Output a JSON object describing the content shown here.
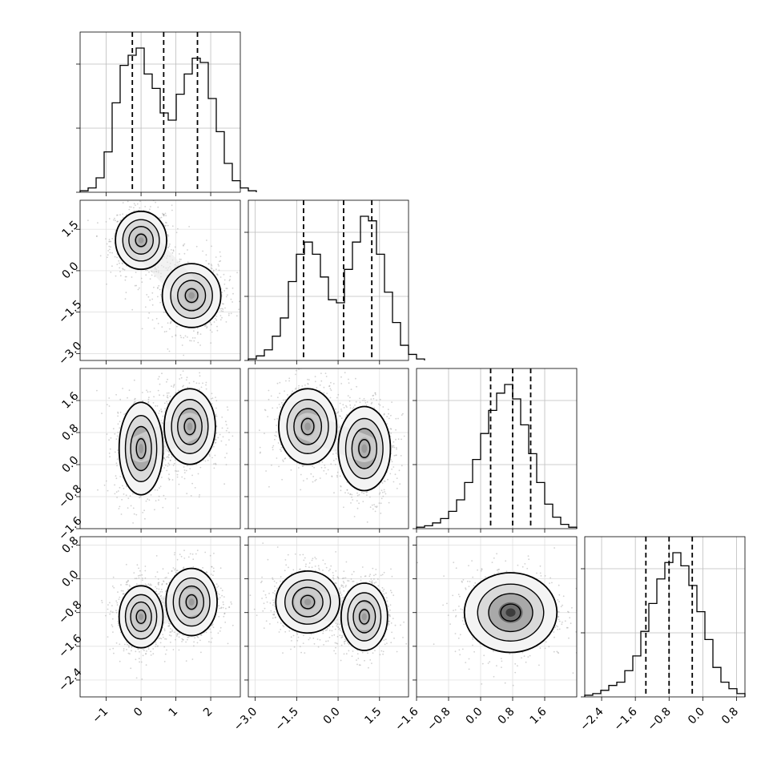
{
  "chart_data": {
    "type": "corner",
    "description_free": true,
    "grid": true,
    "n_params": 4,
    "quantile_lines": [
      [
        -0.25,
        0.65,
        1.62
      ],
      [
        -1.25,
        0.2,
        1.22
      ],
      [
        0.25,
        0.8,
        1.25
      ],
      [
        -1.35,
        -0.8,
        -0.25
      ]
    ],
    "axis_ranges": [
      [
        -1.75,
        2.85
      ],
      [
        -3.25,
        2.55
      ],
      [
        -1.6,
        2.4
      ],
      [
        -2.8,
        1.0
      ]
    ],
    "x_tick_labels": [
      [
        "−1",
        "0",
        "1",
        "2"
      ],
      [
        "−3.0",
        "−1.5",
        "0.0",
        "1.5"
      ],
      [
        "−1.6",
        "−0.8",
        "0.0",
        "0.8",
        "1.6"
      ],
      [
        "−2.4",
        "−1.6",
        "−0.8",
        "0.0",
        "0.8"
      ]
    ],
    "x_tick_values": [
      [
        -1,
        0,
        1,
        2
      ],
      [
        -3.0,
        -1.5,
        0.0,
        1.5
      ],
      [
        -1.6,
        -0.8,
        0.0,
        0.8,
        1.6
      ],
      [
        -2.4,
        -1.6,
        -0.8,
        0.0,
        0.8
      ]
    ],
    "y_tick_labels": [
      [],
      [
        "−3.0",
        "−1.5",
        "0.0",
        "1.5"
      ],
      [
        "−1.6",
        "−0.8",
        "0.0",
        "0.8",
        "1.6"
      ],
      [
        "−2.4",
        "−1.6",
        "−0.8",
        "0.0",
        "0.8"
      ]
    ],
    "y_tick_values": [
      [],
      [
        -3.0,
        -1.5,
        0.0,
        1.5
      ],
      [
        -1.6,
        -0.8,
        0.0,
        0.8,
        1.6
      ],
      [
        -2.4,
        -1.6,
        -0.8,
        0.0,
        0.8
      ]
    ],
    "histograms": [
      {
        "param": 1,
        "bins_start": -1.75,
        "bin_width": 0.23,
        "counts": [
          1,
          3,
          10,
          28,
          62,
          88,
          95,
          100,
          82,
          72,
          55,
          50,
          68,
          82,
          93,
          90,
          65,
          42,
          20,
          8,
          3,
          1
        ]
      },
      {
        "param": 2,
        "bins_start": -3.25,
        "bin_width": 0.29,
        "counts": [
          1,
          3,
          7,
          16,
          28,
          52,
          70,
          78,
          70,
          55,
          40,
          38,
          60,
          78,
          95,
          92,
          70,
          45,
          25,
          10,
          4,
          1
        ]
      },
      {
        "param": 3,
        "bins_start": -1.6,
        "bin_width": 0.2,
        "counts": [
          1,
          2,
          4,
          7,
          12,
          20,
          32,
          48,
          66,
          82,
          94,
          100,
          90,
          72,
          52,
          32,
          17,
          8,
          3,
          1
        ]
      },
      {
        "param": 4,
        "bins_start": -2.8,
        "bin_width": 0.19,
        "counts": [
          1,
          2,
          4,
          7,
          9,
          16,
          25,
          40,
          57,
          72,
          82,
          88,
          80,
          68,
          52,
          35,
          18,
          9,
          5,
          2
        ]
      }
    ],
    "joint_distributions": [
      {
        "x_param": 1,
        "y_param": 2,
        "modes": [
          {
            "x": 0.0,
            "y": 1.1,
            "sx": 0.35,
            "sy": 0.5
          },
          {
            "x": 1.45,
            "y": -0.9,
            "sx": 0.4,
            "sy": 0.55
          }
        ]
      },
      {
        "x_param": 1,
        "y_param": 3,
        "modes": [
          {
            "x": 0.0,
            "y": 0.4,
            "sx": 0.3,
            "sy": 0.55
          },
          {
            "x": 1.4,
            "y": 0.95,
            "sx": 0.35,
            "sy": 0.45
          }
        ]
      },
      {
        "x_param": 2,
        "y_param": 3,
        "modes": [
          {
            "x": -1.1,
            "y": 0.95,
            "sx": 0.5,
            "sy": 0.45
          },
          {
            "x": 0.95,
            "y": 0.4,
            "sx": 0.45,
            "sy": 0.5
          }
        ]
      },
      {
        "x_param": 1,
        "y_param": 4,
        "modes": [
          {
            "x": 0.0,
            "y": -0.9,
            "sx": 0.3,
            "sy": 0.35
          },
          {
            "x": 1.45,
            "y": -0.55,
            "sx": 0.35,
            "sy": 0.38
          }
        ]
      },
      {
        "x_param": 2,
        "y_param": 4,
        "modes": [
          {
            "x": -1.1,
            "y": -0.55,
            "sx": 0.55,
            "sy": 0.35
          },
          {
            "x": 0.95,
            "y": -0.9,
            "sx": 0.4,
            "sy": 0.38
          }
        ]
      },
      {
        "x_param": 3,
        "y_param": 4,
        "modes": [
          {
            "x": 0.75,
            "y": -0.8,
            "sx": 0.55,
            "sy": 0.45
          }
        ]
      }
    ]
  }
}
